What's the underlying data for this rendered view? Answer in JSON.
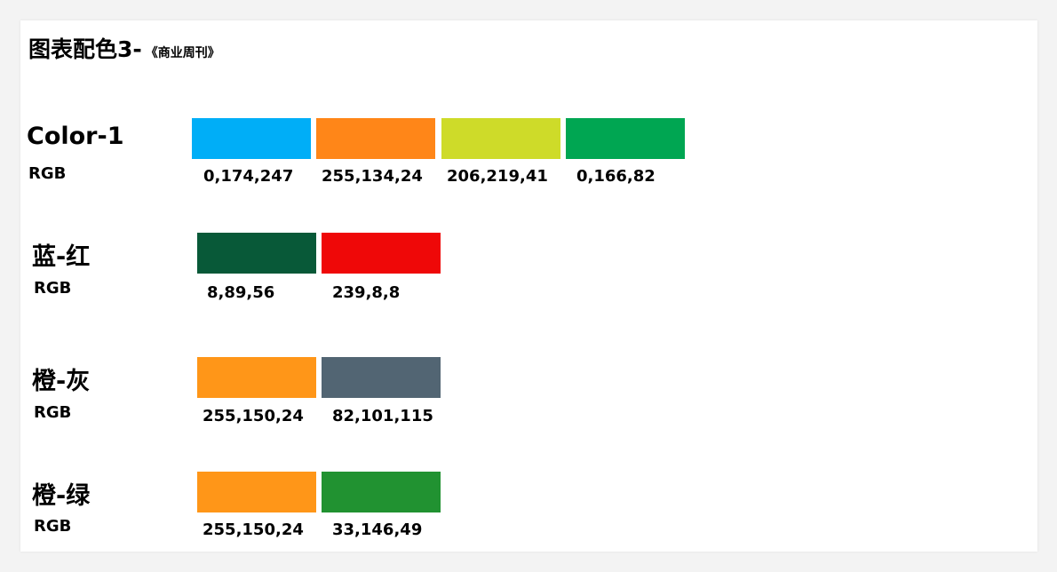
{
  "title": {
    "main": "图表配色3-",
    "sub": "《商业周刊》"
  },
  "rows": [
    {
      "name": "Color-1",
      "rgb_label": "RGB",
      "swatches": [
        {
          "rgb": "0,174,247",
          "color": "#00AEF7"
        },
        {
          "rgb": "255,134,24",
          "color": "#FF8618"
        },
        {
          "rgb": "206,219,41",
          "color": "#CEDB29"
        },
        {
          "rgb": "0,166,82",
          "color": "#00A652"
        }
      ]
    },
    {
      "name": "蓝-红",
      "rgb_label": "RGB",
      "swatches": [
        {
          "rgb": "8,89,56",
          "color": "#085938"
        },
        {
          "rgb": "239,8,8",
          "color": "#EF0808"
        }
      ]
    },
    {
      "name": "橙-灰",
      "rgb_label": "RGB",
      "swatches": [
        {
          "rgb": "255,150,24",
          "color": "#FF9618"
        },
        {
          "rgb": "82,101,115",
          "color": "#526573"
        }
      ]
    },
    {
      "name": "橙-绿",
      "rgb_label": "RGB",
      "swatches": [
        {
          "rgb": "255,150,24",
          "color": "#FF9618"
        },
        {
          "rgb": "33,146,49",
          "color": "#219231"
        }
      ]
    }
  ]
}
